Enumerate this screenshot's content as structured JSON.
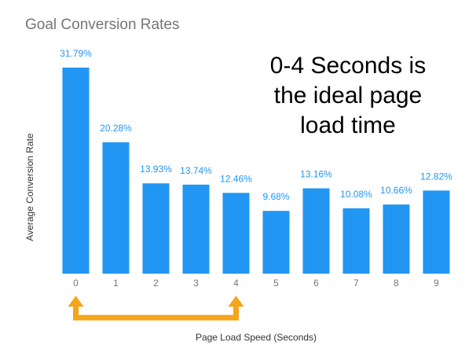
{
  "chart_data": {
    "type": "bar",
    "title": "Goal Conversion Rates",
    "xlabel": "Page Load Speed (Seconds)",
    "ylabel": "Average Conversion Rate",
    "categories": [
      "0",
      "1",
      "2",
      "3",
      "4",
      "5",
      "6",
      "7",
      "8",
      "9"
    ],
    "values": [
      31.79,
      20.28,
      13.93,
      13.74,
      12.46,
      9.68,
      13.16,
      10.08,
      10.66,
      12.82
    ],
    "data_labels": [
      "31.79%",
      "20.28%",
      "13.93%",
      "13.74%",
      "12.46%",
      "9.68%",
      "13.16%",
      "10.08%",
      "10.66%",
      "12.82%"
    ],
    "ylim": [
      0,
      31.79
    ],
    "grid": false,
    "legend": "none",
    "bar_color": "#2196F3",
    "label_color": "#2196F3",
    "annotation": {
      "lines": [
        "0-4 Seconds is",
        "the ideal page",
        "load time"
      ],
      "color": "#000000"
    },
    "bracket": {
      "from_category": "0",
      "to_category": "4",
      "color": "#F5A51C"
    }
  }
}
